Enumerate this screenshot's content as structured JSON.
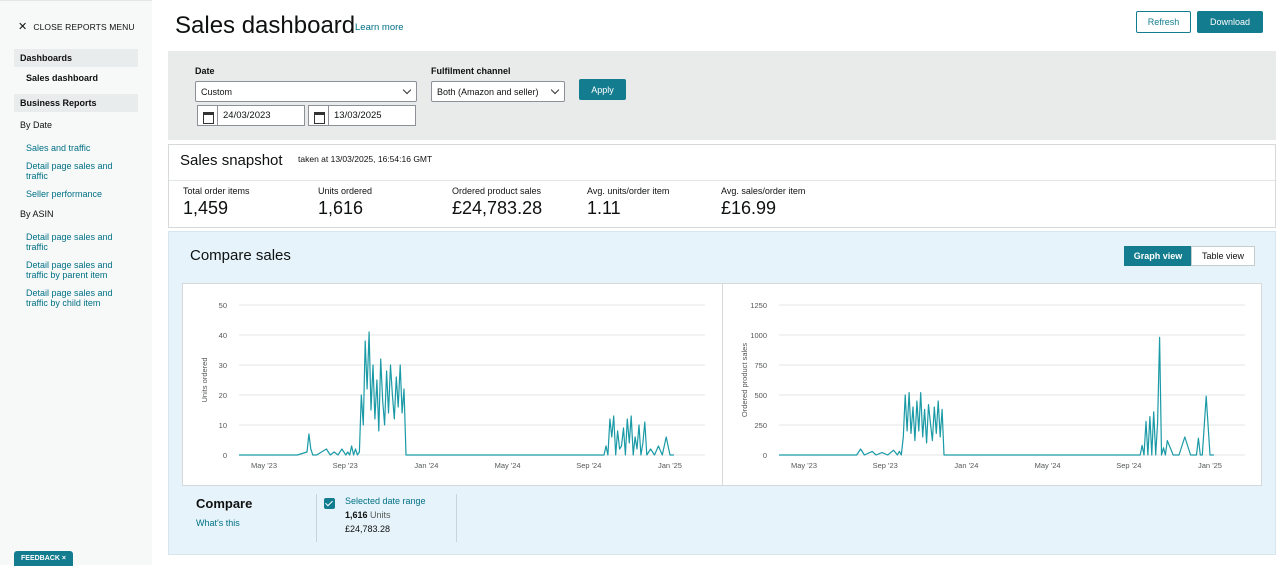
{
  "sidebar": {
    "close_label": "CLOSE REPORTS MENU",
    "dashboards_header": "Dashboards",
    "dashboard_item": "Sales dashboard",
    "business_header": "Business Reports",
    "by_date_label": "By Date",
    "by_date_items": [
      "Sales and traffic",
      "Detail page sales and traffic",
      "Seller performance"
    ],
    "by_asin_label": "By ASIN",
    "by_asin_items": [
      "Detail page sales and traffic",
      "Detail page sales and traffic by parent item",
      "Detail page sales and traffic by child item"
    ],
    "feedback_label": "FEEDBACK ×"
  },
  "header": {
    "title": "Sales dashboard",
    "learn_more": "Learn more",
    "refresh_label": "Refresh",
    "download_label": "Download"
  },
  "filters": {
    "date_label": "Date",
    "date_select": "Custom",
    "start_date": "24/03/2023",
    "end_date": "13/03/2025",
    "channel_label": "Fulfilment channel",
    "channel_select": "Both (Amazon and seller)",
    "apply_label": "Apply"
  },
  "snapshot": {
    "title": "Sales snapshot",
    "taken_at": "taken at 13/03/2025, 16:54:16 GMT",
    "metrics": [
      {
        "label": "Total order items",
        "value": "1,459"
      },
      {
        "label": "Units ordered",
        "value": "1,616"
      },
      {
        "label": "Ordered product sales",
        "value": "£24,783.28"
      },
      {
        "label": "Avg. units/order item",
        "value": "1.11"
      },
      {
        "label": "Avg. sales/order item",
        "value": "£16.99"
      }
    ]
  },
  "compare_sales": {
    "title": "Compare sales",
    "graph_view": "Graph view",
    "table_view": "Table view",
    "compare_title": "Compare",
    "whats_this": "What's this",
    "selected_range": "Selected date range",
    "units_value": "1,616",
    "units_word": "Units",
    "sales_value": "£24,783.28"
  },
  "colors": {
    "accent": "#147c8f",
    "line": "#1a9aa6"
  },
  "chart_data": [
    {
      "type": "line",
      "ylabel": "Units ordered",
      "yticks": [
        0,
        10,
        20,
        30,
        40,
        50
      ],
      "ylim": [
        0,
        50
      ],
      "xticks": [
        "May '23",
        "Sep '23",
        "Jan '24",
        "May '24",
        "Sep '24",
        "Jan '25"
      ],
      "x_range": [
        0,
        24
      ],
      "x": [
        0,
        3,
        3.5,
        3.6,
        3.7,
        3.8,
        4,
        4.5,
        4.7,
        4.9,
        5.1,
        5.3,
        5.5,
        5.6,
        5.7,
        5.8,
        5.9,
        6.0,
        6.1,
        6.2,
        6.3,
        6.4,
        6.5,
        6.6,
        6.7,
        6.8,
        6.9,
        7.0,
        7.1,
        7.2,
        7.3,
        7.4,
        7.5,
        7.6,
        7.7,
        7.8,
        7.9,
        8.0,
        8.1,
        8.2,
        8.3,
        8.4,
        8.5,
        8.6,
        8.8,
        9,
        12,
        16,
        18.8,
        18.9,
        19.0,
        19.1,
        19.2,
        19.3,
        19.4,
        19.5,
        19.6,
        19.7,
        19.8,
        19.9,
        20.0,
        20.1,
        20.2,
        20.3,
        20.4,
        20.5,
        20.6,
        20.7,
        20.8,
        20.9,
        21.0,
        21.2,
        21.4,
        21.6,
        21.8,
        22.0,
        22.2,
        22.4
      ],
      "values": [
        0,
        0,
        1,
        7,
        2,
        0,
        0,
        2,
        0,
        1,
        0,
        2,
        0,
        1,
        0,
        3,
        0,
        2,
        0,
        1,
        20,
        10,
        38,
        22,
        41,
        15,
        30,
        12,
        25,
        8,
        32,
        18,
        10,
        28,
        14,
        30,
        20,
        12,
        26,
        16,
        30,
        14,
        22,
        0,
        0,
        0,
        0,
        0,
        0,
        3,
        0,
        12,
        6,
        13,
        0,
        8,
        2,
        3,
        9,
        0,
        12,
        4,
        13,
        0,
        6,
        2,
        10,
        0,
        4,
        11,
        0,
        2,
        0,
        3,
        0,
        6,
        0,
        0
      ]
    },
    {
      "type": "line",
      "ylabel": "Ordered product sales",
      "yticks": [
        0,
        250,
        500,
        750,
        1000,
        1250
      ],
      "ylim": [
        0,
        1250
      ],
      "xticks": [
        "May '23",
        "Sep '23",
        "Jan '24",
        "May '24",
        "Sep '24",
        "Jan '25"
      ],
      "x_range": [
        0,
        24
      ],
      "x": [
        0,
        3,
        4,
        4.2,
        4.4,
        4.8,
        5,
        5.3,
        5.6,
        5.9,
        6.1,
        6.2,
        6.3,
        6.4,
        6.5,
        6.6,
        6.7,
        6.8,
        6.9,
        7.0,
        7.1,
        7.2,
        7.3,
        7.4,
        7.5,
        7.6,
        7.7,
        7.8,
        7.9,
        8.0,
        8.1,
        8.2,
        8.3,
        8.4,
        8.5,
        8.6,
        8.8,
        9,
        12,
        16,
        18.6,
        18.7,
        18.8,
        18.9,
        19.0,
        19.1,
        19.2,
        19.3,
        19.4,
        19.5,
        19.6,
        19.7,
        19.8,
        19.9,
        20.0,
        20.3,
        20.6,
        20.9,
        21.2,
        21.5,
        21.6,
        21.7,
        21.8,
        22.0,
        22.2,
        22.4
      ],
      "values": [
        0,
        0,
        0,
        50,
        0,
        30,
        0,
        20,
        0,
        40,
        0,
        30,
        0,
        150,
        500,
        200,
        520,
        180,
        400,
        120,
        450,
        200,
        520,
        150,
        380,
        100,
        420,
        260,
        120,
        400,
        180,
        450,
        150,
        380,
        0,
        0,
        0,
        0,
        0,
        0,
        0,
        80,
        0,
        280,
        0,
        320,
        0,
        360,
        0,
        270,
        980,
        0,
        60,
        0,
        120,
        0,
        0,
        150,
        0,
        0,
        140,
        0,
        0,
        490,
        0,
        0
      ]
    }
  ]
}
